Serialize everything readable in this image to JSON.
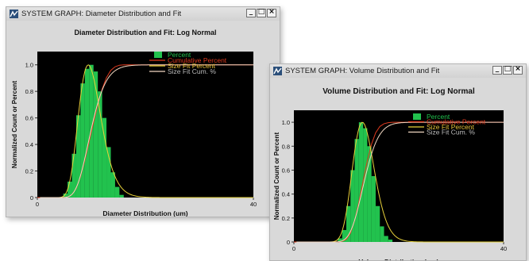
{
  "windows": [
    {
      "id": "diameter",
      "title": "SYSTEM GRAPH: Diameter Distribution and Fit",
      "buttons": {
        "minimize": "_",
        "maximize": "□",
        "close": "×"
      }
    },
    {
      "id": "volume",
      "title": "SYSTEM GRAPH: Volume Distribution and Fit",
      "buttons": {
        "minimize": "_",
        "maximize": "□",
        "close": "×"
      }
    }
  ],
  "colors": {
    "plot_background": "#000000",
    "window_background": "#d9d9d9",
    "percent": "#22c24e",
    "cumulative_percent": "#e03a1e",
    "size_fit_percent": "#e8d23a",
    "size_fit_cum": "#f2d8c2"
  },
  "chart_data": [
    {
      "type": "bar",
      "title": "Diameter Distribution and Fit: Log Normal",
      "xlabel": "Diameter Distribution (um)",
      "ylabel": "Normalized Count or Percent",
      "xlim": [
        0,
        40
      ],
      "ylim": [
        0,
        1.1
      ],
      "x_tick_labels": [
        "0",
        "40"
      ],
      "y_tick_labels": [
        "0",
        "0.2",
        "0.4",
        "0.6",
        "0.8",
        "1.0"
      ],
      "legend_position": "top-right",
      "legend": [
        "Percent",
        "Cumulative Percent",
        "Size Fit Percent",
        "Size Fit Cum. %"
      ],
      "bin_width": 0.8,
      "x": [
        5.2,
        6.0,
        6.8,
        7.6,
        8.4,
        9.2,
        10.0,
        10.8,
        11.6,
        12.4,
        13.2,
        14.0,
        14.8,
        15.6
      ],
      "values": [
        0.03,
        0.12,
        0.33,
        0.62,
        0.86,
        0.97,
        1.0,
        0.95,
        0.8,
        0.6,
        0.38,
        0.19,
        0.08,
        0.02
      ],
      "fit": {
        "median": 9.9,
        "sigma": 0.22
      }
    },
    {
      "type": "bar",
      "title": "Volume Distribution and Fit: Log Normal",
      "xlabel": "Volume Distribution (um)",
      "ylabel": "Normalized Count or Percent",
      "xlim": [
        0,
        40
      ],
      "ylim": [
        0,
        1.1
      ],
      "x_tick_labels": [
        "0",
        "40"
      ],
      "y_tick_labels": [
        "0",
        "0.2",
        "0.4",
        "0.6",
        "0.8",
        "1.0"
      ],
      "legend_position": "top-right",
      "legend": [
        "Percent",
        "Cumulative Percent",
        "Size Fit Percent",
        "Size Fit Cum. %"
      ],
      "bin_width": 0.8,
      "x": [
        8.8,
        9.6,
        10.4,
        11.2,
        12.0,
        12.8,
        13.6,
        14.4,
        15.2,
        16.0,
        16.8,
        17.6,
        18.4
      ],
      "values": [
        0.03,
        0.1,
        0.3,
        0.6,
        0.86,
        1.0,
        0.95,
        0.8,
        0.55,
        0.3,
        0.13,
        0.05,
        0.02
      ],
      "fit": {
        "median": 13.4,
        "sigma": 0.16
      }
    }
  ]
}
